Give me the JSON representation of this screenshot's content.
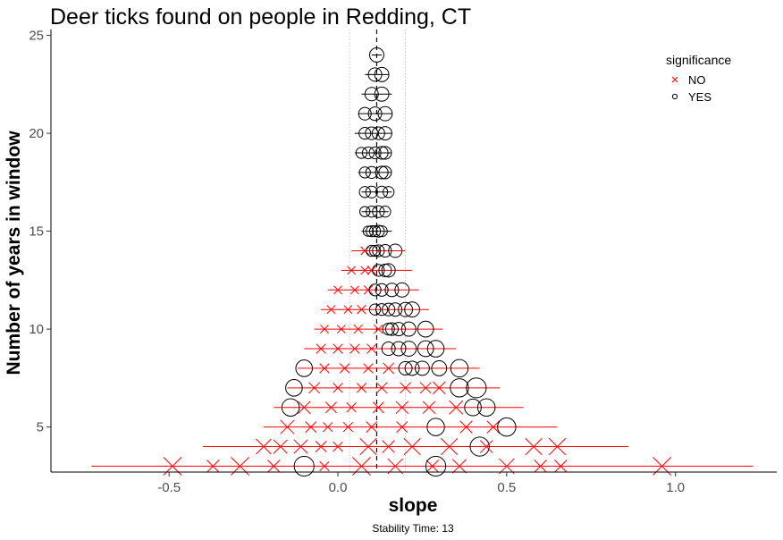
{
  "chart_data": {
    "type": "scatter",
    "title": "Deer ticks found on people in Redding, CT",
    "xlabel": "slope",
    "ylabel": "Number of years in window",
    "caption": "Stability Time: 13",
    "xlim": [
      -0.85,
      1.3
    ],
    "ylim": [
      2.7,
      25.3
    ],
    "x_ticks": [
      -0.5,
      0.0,
      0.5,
      1.0
    ],
    "x_tick_labels": [
      "-0.5",
      "0.0",
      "0.5",
      "1.0"
    ],
    "y_ticks": [
      5,
      10,
      15,
      20,
      25
    ],
    "y_tick_labels": [
      "5",
      "10",
      "15",
      "20",
      "25"
    ],
    "grid": false,
    "reference_lines": {
      "overall_slope": 0.115,
      "lower": 0.035,
      "upper": 0.2
    },
    "legend": {
      "title": "significance",
      "position": "top-right",
      "entries": [
        {
          "label": "NO",
          "shape": "cross",
          "color": "#ff0000"
        },
        {
          "label": "YES",
          "shape": "circle",
          "color": "#000000"
        }
      ]
    },
    "colors": {
      "no": "#ff0000",
      "yes": "#000000"
    },
    "rows": [
      {
        "n": 3,
        "lo": -0.73,
        "hi": 1.23,
        "points": [
          [
            -0.49,
            "NO",
            1.0
          ],
          [
            -0.37,
            "NO",
            0.6
          ],
          [
            -0.29,
            "NO",
            1.0
          ],
          [
            -0.19,
            "NO",
            0.6
          ],
          [
            -0.1,
            "YES",
            0.9
          ],
          [
            -0.04,
            "NO",
            0.4
          ],
          [
            0.07,
            "NO",
            1.0
          ],
          [
            0.17,
            "NO",
            0.8
          ],
          [
            0.28,
            "NO",
            0.6
          ],
          [
            0.29,
            "YES",
            0.9
          ],
          [
            0.36,
            "NO",
            0.7
          ],
          [
            0.5,
            "NO",
            0.8
          ],
          [
            0.6,
            "NO",
            0.6
          ],
          [
            0.66,
            "NO",
            0.6
          ],
          [
            0.96,
            "NO",
            1.0
          ]
        ]
      },
      {
        "n": 4,
        "lo": -0.4,
        "hi": 0.86,
        "points": [
          [
            -0.22,
            "NO",
            0.8
          ],
          [
            -0.17,
            "NO",
            0.7
          ],
          [
            -0.11,
            "NO",
            0.7
          ],
          [
            -0.05,
            "NO",
            0.5
          ],
          [
            0.0,
            "NO",
            0.4
          ],
          [
            0.09,
            "NO",
            0.9
          ],
          [
            0.15,
            "NO",
            0.6
          ],
          [
            0.22,
            "NO",
            0.9
          ],
          [
            0.33,
            "NO",
            0.9
          ],
          [
            0.42,
            "YES",
            0.85
          ],
          [
            0.44,
            "NO",
            0.6
          ],
          [
            0.58,
            "NO",
            0.9
          ],
          [
            0.65,
            "NO",
            0.9
          ]
        ]
      },
      {
        "n": 5,
        "lo": -0.22,
        "hi": 0.65,
        "points": [
          [
            -0.15,
            "NO",
            0.7
          ],
          [
            -0.08,
            "NO",
            0.5
          ],
          [
            -0.03,
            "NO",
            0.4
          ],
          [
            0.03,
            "NO",
            0.4
          ],
          [
            0.1,
            "NO",
            0.5
          ],
          [
            0.19,
            "NO",
            0.5
          ],
          [
            0.29,
            "YES",
            0.75
          ],
          [
            0.38,
            "NO",
            0.6
          ],
          [
            0.46,
            "NO",
            0.6
          ],
          [
            0.5,
            "YES",
            0.8
          ]
        ]
      },
      {
        "n": 6,
        "lo": -0.19,
        "hi": 0.55,
        "points": [
          [
            -0.14,
            "YES",
            0.75
          ],
          [
            -0.1,
            "NO",
            0.6
          ],
          [
            -0.02,
            "NO",
            0.5
          ],
          [
            0.04,
            "NO",
            0.4
          ],
          [
            0.12,
            "NO",
            0.5
          ],
          [
            0.19,
            "NO",
            0.6
          ],
          [
            0.27,
            "NO",
            0.6
          ],
          [
            0.35,
            "NO",
            0.7
          ],
          [
            0.4,
            "YES",
            0.7
          ],
          [
            0.44,
            "YES",
            0.75
          ]
        ]
      },
      {
        "n": 7,
        "lo": -0.15,
        "hi": 0.48,
        "points": [
          [
            -0.13,
            "YES",
            0.7
          ],
          [
            -0.07,
            "NO",
            0.5
          ],
          [
            0.0,
            "NO",
            0.4
          ],
          [
            0.07,
            "NO",
            0.4
          ],
          [
            0.13,
            "NO",
            0.5
          ],
          [
            0.2,
            "NO",
            0.5
          ],
          [
            0.26,
            "NO",
            0.5
          ],
          [
            0.3,
            "NO",
            0.6
          ],
          [
            0.36,
            "YES",
            0.8
          ],
          [
            0.41,
            "YES",
            0.9
          ]
        ]
      },
      {
        "n": 8,
        "lo": -0.12,
        "hi": 0.42,
        "points": [
          [
            -0.1,
            "YES",
            0.7
          ],
          [
            -0.04,
            "NO",
            0.4
          ],
          [
            0.02,
            "NO",
            0.4
          ],
          [
            0.09,
            "NO",
            0.4
          ],
          [
            0.15,
            "NO",
            0.5
          ],
          [
            0.2,
            "YES",
            0.5
          ],
          [
            0.22,
            "YES",
            0.55
          ],
          [
            0.25,
            "YES",
            0.55
          ],
          [
            0.3,
            "YES",
            0.6
          ],
          [
            0.36,
            "YES",
            0.75
          ]
        ]
      },
      {
        "n": 9,
        "lo": -0.1,
        "hi": 0.35,
        "points": [
          [
            -0.05,
            "NO",
            0.4
          ],
          [
            0.0,
            "NO",
            0.4
          ],
          [
            0.05,
            "NO",
            0.4
          ],
          [
            0.1,
            "NO",
            0.4
          ],
          [
            0.15,
            "YES",
            0.5
          ],
          [
            0.18,
            "YES",
            0.55
          ],
          [
            0.21,
            "YES",
            0.6
          ],
          [
            0.26,
            "YES",
            0.65
          ],
          [
            0.29,
            "YES",
            0.7
          ]
        ]
      },
      {
        "n": 10,
        "lo": -0.07,
        "hi": 0.31,
        "points": [
          [
            -0.04,
            "NO",
            0.3
          ],
          [
            0.01,
            "NO",
            0.3
          ],
          [
            0.06,
            "NO",
            0.35
          ],
          [
            0.12,
            "NO",
            0.35
          ],
          [
            0.15,
            "YES",
            0.4
          ],
          [
            0.16,
            "YES",
            0.45
          ],
          [
            0.18,
            "YES",
            0.5
          ],
          [
            0.21,
            "YES",
            0.55
          ],
          [
            0.26,
            "YES",
            0.65
          ]
        ]
      },
      {
        "n": 11,
        "lo": -0.05,
        "hi": 0.27,
        "points": [
          [
            -0.02,
            "NO",
            0.3
          ],
          [
            0.03,
            "NO",
            0.3
          ],
          [
            0.07,
            "NO",
            0.35
          ],
          [
            0.11,
            "YES",
            0.35
          ],
          [
            0.13,
            "YES",
            0.4
          ],
          [
            0.15,
            "YES",
            0.45
          ],
          [
            0.17,
            "YES",
            0.5
          ],
          [
            0.2,
            "YES",
            0.55
          ],
          [
            0.22,
            "YES",
            0.6
          ]
        ]
      },
      {
        "n": 12,
        "lo": -0.03,
        "hi": 0.24,
        "points": [
          [
            0.0,
            "NO",
            0.3
          ],
          [
            0.05,
            "NO",
            0.3
          ],
          [
            0.09,
            "NO",
            0.35
          ],
          [
            0.11,
            "YES",
            0.4
          ],
          [
            0.13,
            "YES",
            0.45
          ],
          [
            0.16,
            "YES",
            0.5
          ],
          [
            0.19,
            "YES",
            0.55
          ]
        ]
      },
      {
        "n": 13,
        "lo": 0.01,
        "hi": 0.22,
        "points": [
          [
            0.04,
            "NO",
            0.3
          ],
          [
            0.08,
            "NO",
            0.3
          ],
          [
            0.1,
            "NO",
            0.35
          ],
          [
            0.12,
            "YES",
            0.4
          ],
          [
            0.14,
            "YES",
            0.45
          ],
          [
            0.15,
            "YES",
            0.5
          ]
        ]
      },
      {
        "n": 14,
        "lo": 0.04,
        "hi": 0.2,
        "points": [
          [
            0.08,
            "NO",
            0.3
          ],
          [
            0.1,
            "YES",
            0.35
          ],
          [
            0.11,
            "YES",
            0.35
          ],
          [
            0.12,
            "YES",
            0.4
          ],
          [
            0.14,
            "YES",
            0.45
          ],
          [
            0.17,
            "YES",
            0.5
          ]
        ]
      },
      {
        "n": 15,
        "lo": 0.07,
        "hi": 0.16,
        "points": [
          [
            0.09,
            "YES",
            0.3
          ],
          [
            0.1,
            "YES",
            0.35
          ],
          [
            0.11,
            "YES",
            0.35
          ],
          [
            0.12,
            "YES",
            0.4
          ],
          [
            0.13,
            "YES",
            0.35
          ]
        ]
      },
      {
        "n": 16,
        "lo": 0.07,
        "hi": 0.15,
        "points": [
          [
            0.08,
            "YES",
            0.3
          ],
          [
            0.1,
            "YES",
            0.35
          ],
          [
            0.12,
            "YES",
            0.4
          ],
          [
            0.14,
            "YES",
            0.35
          ]
        ]
      },
      {
        "n": 17,
        "lo": 0.07,
        "hi": 0.16,
        "points": [
          [
            0.08,
            "YES",
            0.35
          ],
          [
            0.1,
            "YES",
            0.4
          ],
          [
            0.13,
            "YES",
            0.4
          ],
          [
            0.15,
            "YES",
            0.35
          ]
        ]
      },
      {
        "n": 18,
        "lo": 0.06,
        "hi": 0.16,
        "points": [
          [
            0.08,
            "YES",
            0.35
          ],
          [
            0.1,
            "YES",
            0.4
          ],
          [
            0.13,
            "YES",
            0.45
          ],
          [
            0.14,
            "YES",
            0.45
          ]
        ]
      },
      {
        "n": 19,
        "lo": 0.05,
        "hi": 0.16,
        "points": [
          [
            0.07,
            "YES",
            0.35
          ],
          [
            0.09,
            "YES",
            0.4
          ],
          [
            0.11,
            "YES",
            0.4
          ],
          [
            0.13,
            "YES",
            0.45
          ],
          [
            0.14,
            "YES",
            0.45
          ]
        ]
      },
      {
        "n": 20,
        "lo": 0.05,
        "hi": 0.16,
        "points": [
          [
            0.08,
            "YES",
            0.4
          ],
          [
            0.1,
            "YES",
            0.45
          ],
          [
            0.12,
            "YES",
            0.45
          ],
          [
            0.14,
            "YES",
            0.5
          ]
        ]
      },
      {
        "n": 21,
        "lo": 0.06,
        "hi": 0.16,
        "points": [
          [
            0.08,
            "YES",
            0.45
          ],
          [
            0.11,
            "YES",
            0.5
          ],
          [
            0.14,
            "YES",
            0.55
          ]
        ]
      },
      {
        "n": 22,
        "lo": 0.07,
        "hi": 0.16,
        "points": [
          [
            0.1,
            "YES",
            0.5
          ],
          [
            0.13,
            "YES",
            0.55
          ]
        ]
      },
      {
        "n": 23,
        "lo": 0.08,
        "hi": 0.15,
        "points": [
          [
            0.11,
            "YES",
            0.5
          ],
          [
            0.13,
            "YES",
            0.55
          ]
        ]
      },
      {
        "n": 24,
        "lo": 0.1,
        "hi": 0.13,
        "points": [
          [
            0.115,
            "YES",
            0.55
          ]
        ]
      }
    ]
  }
}
